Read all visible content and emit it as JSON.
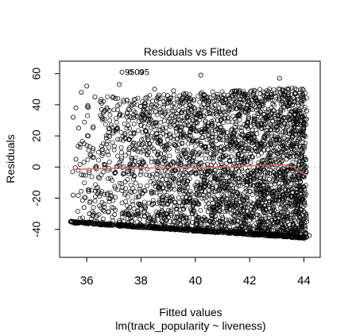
{
  "chart_data": {
    "type": "scatter",
    "title": "Residuals vs Fitted",
    "xlabel": "Fitted values",
    "subtitle": "lm(track_popularity ~ liveness)",
    "ylabel": "Residuals",
    "xlim": [
      35.0,
      44.6
    ],
    "ylim": [
      -58,
      68
    ],
    "xticks": [
      36,
      38,
      40,
      42,
      44
    ],
    "yticks": [
      -40,
      -20,
      0,
      20,
      40,
      60
    ],
    "xtick_labels": [
      "36",
      "38",
      "40",
      "42",
      "44"
    ],
    "ytick_labels": [
      "-40",
      "-20",
      "0",
      "20",
      "40",
      "60"
    ],
    "annotation": "95095",
    "annotation_point": {
      "x": 37.7,
      "y": 61
    },
    "reference_line": {
      "y": 0,
      "style": "dotted",
      "color": "#c0c0c0"
    },
    "smoother": {
      "color": "#e06666",
      "x": [
        35.5,
        36.5,
        37.5,
        38.5,
        39.5,
        40.5,
        41.0,
        41.5,
        42.0,
        42.5,
        43.0,
        43.3,
        43.6,
        43.9,
        44.1
      ],
      "y": [
        -1.5,
        -1.0,
        -0.8,
        -0.6,
        -0.4,
        -0.2,
        0.0,
        0.6,
        0.8,
        1.0,
        1.2,
        1.4,
        0.0,
        -3.5,
        -5.5
      ]
    },
    "point_style": {
      "marker": "open-circle",
      "color": "#000000"
    },
    "density_note": "dense point cloud between fitted values 35.4 and 44.1; lower boundary residual from about -36 at 35.4 to about -46 at 44.1",
    "points": [
      {
        "x": 37.3,
        "y": 61
      },
      {
        "x": 37.6,
        "y": 61
      },
      {
        "x": 38.0,
        "y": 61
      },
      {
        "x": 40.2,
        "y": 59
      },
      {
        "x": 36.0,
        "y": 52
      },
      {
        "x": 37.2,
        "y": 53
      },
      {
        "x": 38.5,
        "y": 50
      },
      {
        "x": 39.2,
        "y": 49
      },
      {
        "x": 43.1,
        "y": 57
      },
      {
        "x": 35.8,
        "y": 48
      },
      {
        "x": 36.3,
        "y": 45
      },
      {
        "x": 36.5,
        "y": 42
      },
      {
        "x": 35.6,
        "y": 38
      },
      {
        "x": 35.5,
        "y": 32
      },
      {
        "x": 35.7,
        "y": 25
      },
      {
        "x": 35.9,
        "y": 15
      },
      {
        "x": 35.6,
        "y": 5
      },
      {
        "x": 35.8,
        "y": -5
      },
      {
        "x": 35.5,
        "y": -18
      },
      {
        "x": 35.9,
        "y": -26
      },
      {
        "x": 36.1,
        "y": -30
      },
      {
        "x": 44.1,
        "y": -45
      },
      {
        "x": 44.2,
        "y": -44
      },
      {
        "x": 43.9,
        "y": -43
      },
      {
        "x": 44.0,
        "y": 43
      },
      {
        "x": 44.1,
        "y": 36
      },
      {
        "x": 44.0,
        "y": 20
      }
    ]
  }
}
